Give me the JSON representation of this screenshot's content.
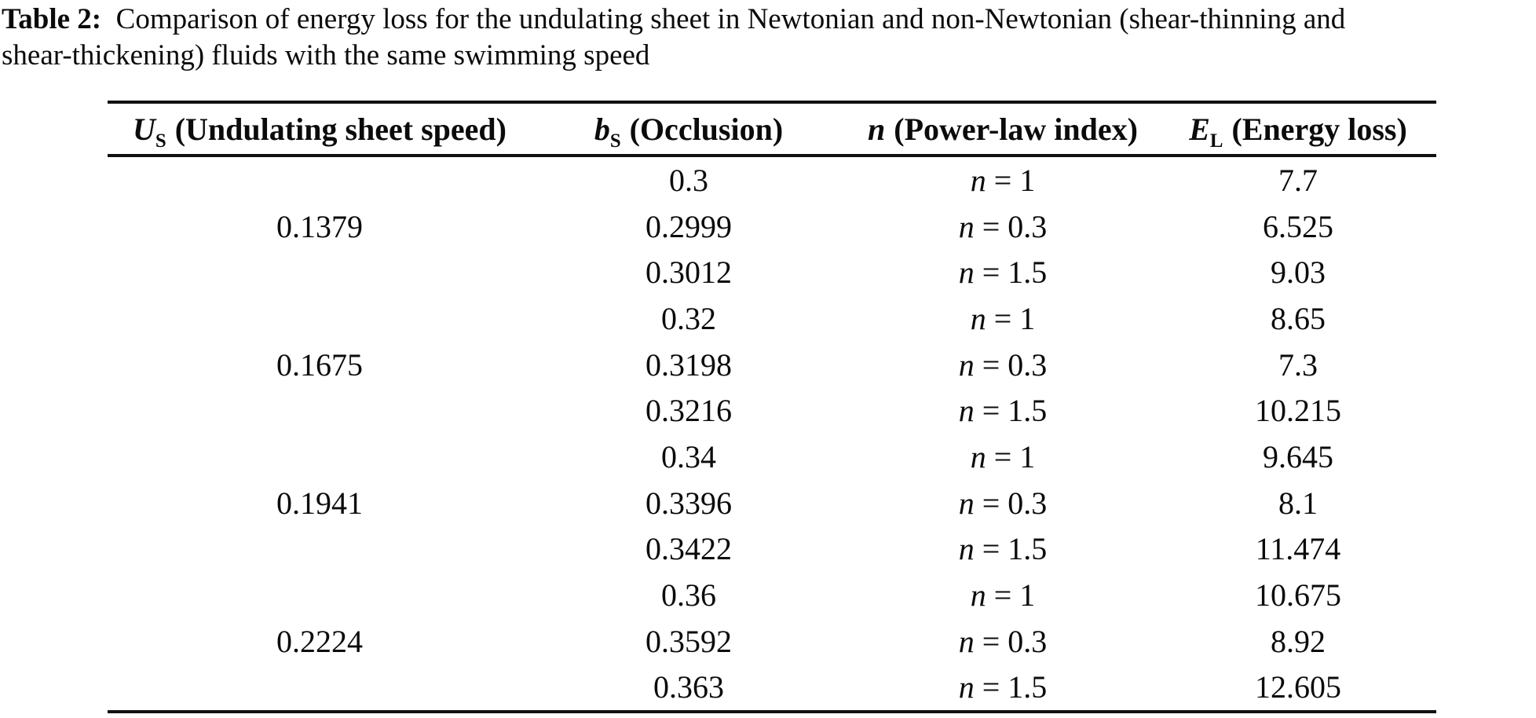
{
  "caption": {
    "label": "Table 2:",
    "line1": "Comparison of energy loss for the undulating sheet in Newtonian and non-Newtonian (shear-thinning and",
    "line2": "shear-thickening) fluids with the same swimming speed"
  },
  "table": {
    "headers": [
      {
        "sym": "U",
        "sub": "S",
        "label": "(Undulating sheet speed)"
      },
      {
        "sym": "b",
        "sub": "S",
        "label": "(Occlusion)"
      },
      {
        "sym": "n",
        "sub": "",
        "label": "(Power-law index)"
      },
      {
        "sym": "E",
        "sub": "L",
        "label": "(Energy loss)"
      }
    ],
    "rows": [
      {
        "us": "",
        "b": "0.3",
        "n_sym": "n",
        "n_eq": "= 1",
        "el": "7.7"
      },
      {
        "us": "0.1379",
        "b": "0.2999",
        "n_sym": "n",
        "n_eq": "= 0.3",
        "el": "6.525"
      },
      {
        "us": "",
        "b": "0.3012",
        "n_sym": "n",
        "n_eq": "= 1.5",
        "el": "9.03"
      },
      {
        "us": "",
        "b": "0.32",
        "n_sym": "n",
        "n_eq": "= 1",
        "el": "8.65"
      },
      {
        "us": "0.1675",
        "b": "0.3198",
        "n_sym": "n",
        "n_eq": "= 0.3",
        "el": "7.3"
      },
      {
        "us": "",
        "b": "0.3216",
        "n_sym": "n",
        "n_eq": "= 1.5",
        "el": "10.215"
      },
      {
        "us": "",
        "b": "0.34",
        "n_sym": "n",
        "n_eq": "= 1",
        "el": "9.645"
      },
      {
        "us": "0.1941",
        "b": "0.3396",
        "n_sym": "n",
        "n_eq": "= 0.3",
        "el": "8.1"
      },
      {
        "us": "",
        "b": "0.3422",
        "n_sym": "n",
        "n_eq": "= 1.5",
        "el": "11.474"
      },
      {
        "us": "",
        "b": "0.36",
        "n_sym": "n",
        "n_eq": "= 1",
        "el": "10.675"
      },
      {
        "us": "0.2224",
        "b": "0.3592",
        "n_sym": "n",
        "n_eq": "= 0.3",
        "el": "8.92"
      },
      {
        "us": "",
        "b": "0.363",
        "n_sym": "n",
        "n_eq": "= 1.5",
        "el": "12.605"
      }
    ]
  },
  "colors": {
    "text": "#0b0b0b",
    "rule": "#111111",
    "background": "#ffffff"
  }
}
